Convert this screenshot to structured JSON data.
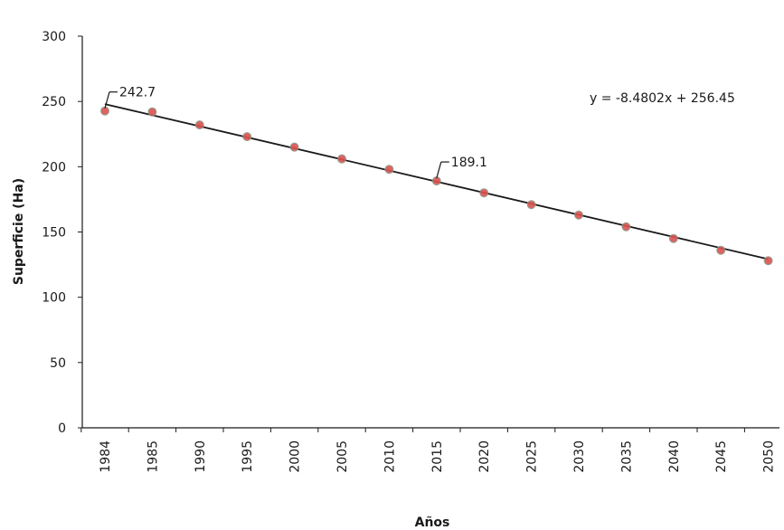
{
  "chart_data": {
    "type": "scatter",
    "xlabel": "Años",
    "ylabel": "Superficie (Ha)",
    "ylim": [
      0,
      300
    ],
    "yticks": [
      "0",
      "50",
      "100",
      "150",
      "200",
      "250",
      "300"
    ],
    "categories": [
      "1984",
      "1985",
      "1990",
      "1995",
      "2000",
      "2005",
      "2010",
      "2015",
      "2020",
      "2025",
      "2030",
      "2035",
      "2040",
      "2045",
      "2050"
    ],
    "values": [
      242.7,
      242,
      232,
      223,
      215,
      206,
      198,
      189.1,
      180,
      171,
      163,
      154,
      145,
      136,
      128
    ],
    "trendline": {
      "slope": -8.4802,
      "intercept": 256.45,
      "equation": "y = -8.4802x + 256.45"
    },
    "annotations": [
      {
        "category": "1984",
        "text": "242.7"
      },
      {
        "category": "2015",
        "text": "189.1"
      }
    ],
    "grid": false,
    "marker_color": "#d9534f",
    "line_color": "#1a1a1a"
  }
}
